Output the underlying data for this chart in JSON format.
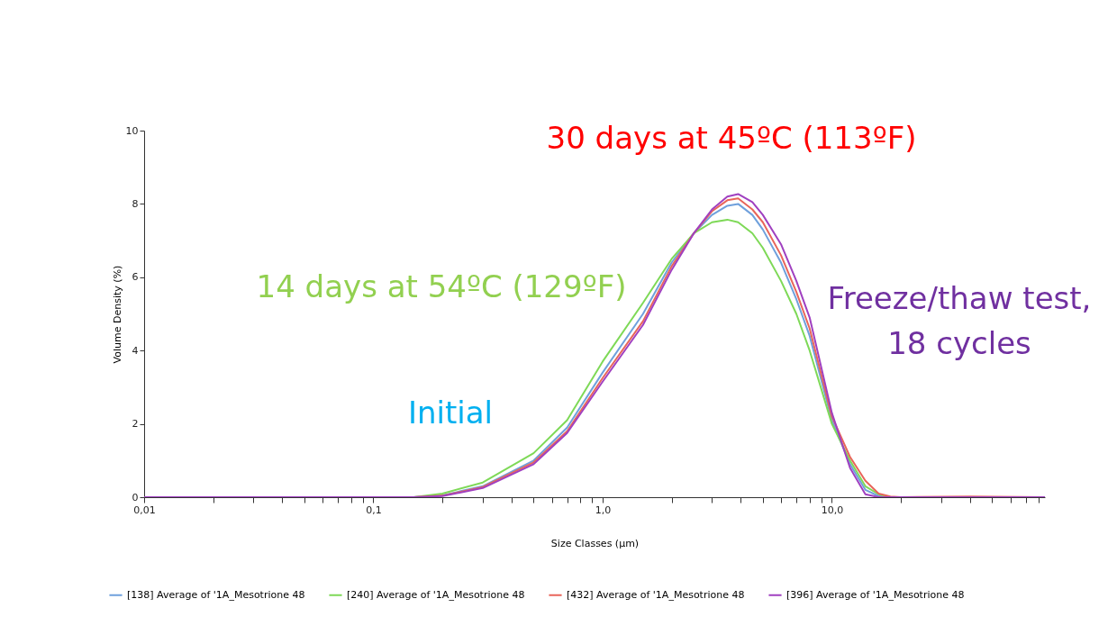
{
  "chart_data": {
    "type": "line",
    "xlabel": "Size Classes (µm)",
    "ylabel": "Volume Density (%)",
    "log": "x",
    "xlim": [
      0.01,
      85
    ],
    "ylim": [
      0,
      10
    ],
    "yticks": [
      0,
      2,
      4,
      6,
      8,
      10
    ],
    "xticks": [
      {
        "value": 0.01,
        "label": "0,01"
      },
      {
        "value": 0.02,
        "label": null
      },
      {
        "value": 0.03,
        "label": null
      },
      {
        "value": 0.04,
        "label": null
      },
      {
        "value": 0.05,
        "label": null
      },
      {
        "value": 0.06,
        "label": null
      },
      {
        "value": 0.07,
        "label": null
      },
      {
        "value": 0.08,
        "label": null
      },
      {
        "value": 0.09,
        "label": null
      },
      {
        "value": 0.1,
        "label": "0,1"
      },
      {
        "value": 0.2,
        "label": null
      },
      {
        "value": 0.3,
        "label": null
      },
      {
        "value": 0.4,
        "label": null
      },
      {
        "value": 0.5,
        "label": null
      },
      {
        "value": 0.6,
        "label": null
      },
      {
        "value": 0.7,
        "label": null
      },
      {
        "value": 0.8,
        "label": null
      },
      {
        "value": 0.9,
        "label": null
      },
      {
        "value": 1,
        "label": "1,0"
      },
      {
        "value": 2,
        "label": null
      },
      {
        "value": 3,
        "label": null
      },
      {
        "value": 4,
        "label": null
      },
      {
        "value": 5,
        "label": null
      },
      {
        "value": 6,
        "label": null
      },
      {
        "value": 7,
        "label": null
      },
      {
        "value": 8,
        "label": null
      },
      {
        "value": 9,
        "label": null
      },
      {
        "value": 10,
        "label": "10,0"
      },
      {
        "value": 20,
        "label": null
      },
      {
        "value": 30,
        "label": null
      },
      {
        "value": 40,
        "label": null
      },
      {
        "value": 50,
        "label": null
      },
      {
        "value": 60,
        "label": null
      },
      {
        "value": 70,
        "label": null
      },
      {
        "value": 80,
        "label": null
      }
    ],
    "x": [
      0.01,
      0.15,
      0.2,
      0.3,
      0.5,
      0.7,
      1.0,
      1.5,
      2.0,
      2.5,
      3.0,
      3.5,
      3.9,
      4.5,
      5,
      6,
      7,
      8,
      10,
      12,
      14,
      16,
      18,
      20,
      40,
      85
    ],
    "series": [
      {
        "name": "[138] Average of '1A_Mesotrione 48",
        "color": "#6fa0dc",
        "values": [
          0,
          0,
          0.05,
          0.3,
          1.0,
          1.9,
          3.4,
          5.0,
          6.4,
          7.2,
          7.7,
          7.95,
          8.0,
          7.7,
          7.3,
          6.4,
          5.4,
          4.4,
          2.1,
          0.9,
          0.2,
          0.03,
          0,
          null,
          null,
          null
        ]
      },
      {
        "name": "[240] Average of '1A_Mesotrione 48",
        "color": "#7ed957",
        "values": [
          0,
          0,
          0.1,
          0.4,
          1.2,
          2.1,
          3.7,
          5.3,
          6.5,
          7.2,
          7.5,
          7.57,
          7.5,
          7.2,
          6.8,
          5.9,
          5.0,
          4.0,
          2.0,
          1.0,
          0.3,
          0.08,
          0,
          0,
          null,
          null
        ]
      },
      {
        "name": "[432] Average of '1A_Mesotrione 48",
        "color": "#e8655a",
        "values": [
          0,
          0,
          0.04,
          0.28,
          0.95,
          1.8,
          3.25,
          4.8,
          6.3,
          7.2,
          7.8,
          8.1,
          8.15,
          7.85,
          7.5,
          6.6,
          5.6,
          4.6,
          2.2,
          1.1,
          0.45,
          0.1,
          0.02,
          0,
          0.02,
          0
        ]
      },
      {
        "name": "[396] Average of '1A_Mesotrione 48",
        "color": "#a040c0",
        "values": [
          0,
          0,
          0.03,
          0.25,
          0.9,
          1.75,
          3.15,
          4.7,
          6.2,
          7.2,
          7.85,
          8.2,
          8.27,
          8.05,
          7.7,
          6.9,
          5.9,
          4.9,
          2.3,
          0.8,
          0.08,
          0,
          0,
          0,
          0,
          0
        ]
      }
    ],
    "legend": "bottom",
    "grid": false,
    "line_style": "solid",
    "marker": "none",
    "annotations": [
      "30 days at 45ºC (113ºF)",
      "14 days at 54ºC (129ºF)",
      "Initial",
      "Freeze/thaw test,\n18 cycles"
    ]
  }
}
